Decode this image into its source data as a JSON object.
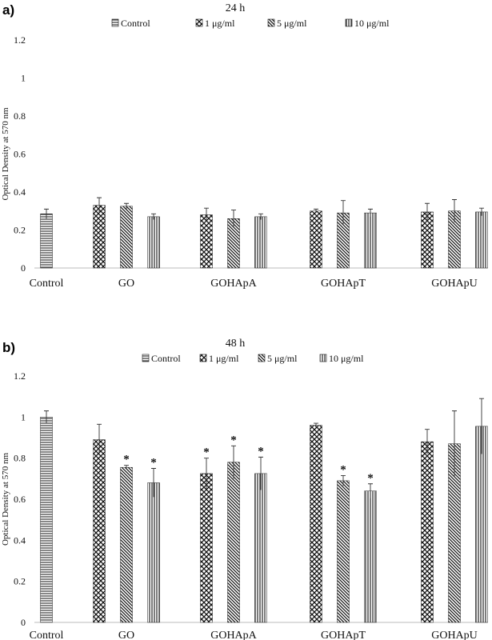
{
  "chart_data": [
    {
      "panel_label": "a)",
      "type": "bar",
      "title": "24 h",
      "xlabel": "",
      "ylabel": "Optical Density at 570 nm",
      "ylim": [
        0,
        1.2
      ],
      "yticks": [
        "0",
        "0.2",
        "0.4",
        "0.6",
        "0.8",
        "1",
        "1.2"
      ],
      "legend_position": "top",
      "categories": [
        "Control",
        "GO",
        "GOHApA",
        "GOHApT",
        "GOHApU"
      ],
      "series": [
        {
          "name": "Control",
          "pattern": "horizontal",
          "values": [
            0.285,
            null,
            null,
            null,
            null
          ],
          "errors": [
            0.025,
            null,
            null,
            null,
            null
          ]
        },
        {
          "name": "1 μg/ml",
          "pattern": "checker",
          "values": [
            null,
            0.33,
            0.28,
            0.3,
            0.295
          ],
          "errors": [
            null,
            0.04,
            0.035,
            0.01,
            0.045
          ]
        },
        {
          "name": "5 μg/ml",
          "pattern": "diagonal",
          "values": [
            null,
            0.325,
            0.26,
            0.29,
            0.3
          ],
          "errors": [
            null,
            0.015,
            0.045,
            0.065,
            0.06
          ]
        },
        {
          "name": "10 μg/ml",
          "pattern": "vertical",
          "values": [
            null,
            0.27,
            0.27,
            0.29,
            0.295
          ],
          "errors": [
            null,
            0.015,
            0.015,
            0.02,
            0.02
          ]
        }
      ],
      "significance": []
    },
    {
      "panel_label": "b)",
      "type": "bar",
      "title": "48 h",
      "xlabel": "",
      "ylabel": "Optical Density at 570 nm",
      "ylim": [
        0,
        1.2
      ],
      "yticks": [
        "0",
        "0.2",
        "0.4",
        "0.6",
        "0.8",
        "1",
        "1.2"
      ],
      "legend_position": "top",
      "categories": [
        "Control",
        "GO",
        "GOHApA",
        "GOHApT",
        "GOHApU"
      ],
      "series": [
        {
          "name": "Control",
          "pattern": "horizontal",
          "values": [
            1.0,
            null,
            null,
            null,
            null
          ],
          "errors": [
            0.03,
            null,
            null,
            null,
            null
          ]
        },
        {
          "name": "1 μg/ml",
          "pattern": "checker",
          "values": [
            null,
            0.89,
            0.725,
            0.96,
            0.88
          ],
          "errors": [
            null,
            0.075,
            0.075,
            0.01,
            0.06
          ]
        },
        {
          "name": "5 μg/ml",
          "pattern": "diagonal",
          "values": [
            null,
            0.755,
            0.78,
            0.69,
            0.87
          ],
          "errors": [
            null,
            0.01,
            0.08,
            0.025,
            0.16
          ]
        },
        {
          "name": "10 μg/ml",
          "pattern": "vertical",
          "values": [
            null,
            0.68,
            0.725,
            0.64,
            0.955
          ],
          "errors": [
            null,
            0.07,
            0.08,
            0.035,
            0.135
          ]
        }
      ],
      "significance": [
        {
          "category": 1,
          "series": 2,
          "text": "*"
        },
        {
          "category": 1,
          "series": 3,
          "text": "*"
        },
        {
          "category": 2,
          "series": 1,
          "text": "*"
        },
        {
          "category": 2,
          "series": 2,
          "text": "*"
        },
        {
          "category": 2,
          "series": 3,
          "text": "*"
        },
        {
          "category": 3,
          "series": 2,
          "text": "*"
        },
        {
          "category": 3,
          "series": 3,
          "text": "*"
        }
      ]
    }
  ]
}
